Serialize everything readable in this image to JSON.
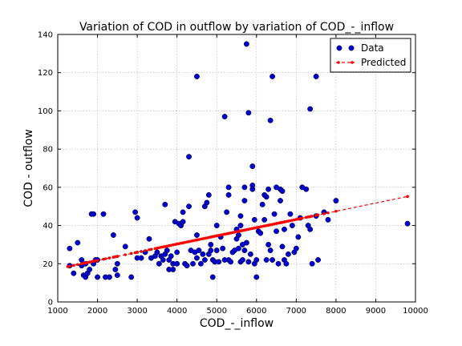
{
  "chart_data": {
    "type": "scatter",
    "title": "Variation of COD in outflow by variation of COD_-_inflow",
    "xlabel": "COD_-_inflow",
    "ylabel": "COD - outflow",
    "xlim": [
      1000,
      10000
    ],
    "ylim": [
      0,
      140
    ],
    "xticks": [
      "1000",
      "2000",
      "3000",
      "4000",
      "5000",
      "6000",
      "7000",
      "8000",
      "9000",
      "10000"
    ],
    "yticks": [
      "0",
      "20",
      "40",
      "60",
      "80",
      "100",
      "120",
      "140"
    ],
    "grid": true,
    "legend_position": "top-right",
    "colors": {
      "data": "#0000cc",
      "predicted": "#ff0000"
    },
    "series": [
      {
        "name": "Data",
        "style": "markers",
        "points": [
          [
            1300,
            19
          ],
          [
            1300,
            28
          ],
          [
            1400,
            15
          ],
          [
            1500,
            31
          ],
          [
            1600,
            22
          ],
          [
            1600,
            19
          ],
          [
            1650,
            14
          ],
          [
            1700,
            20
          ],
          [
            1700,
            13
          ],
          [
            1750,
            15
          ],
          [
            1800,
            17
          ],
          [
            1850,
            46
          ],
          [
            1900,
            46
          ],
          [
            1900,
            20
          ],
          [
            1950,
            22
          ],
          [
            2000,
            13
          ],
          [
            2000,
            22
          ],
          [
            2150,
            46
          ],
          [
            2200,
            13
          ],
          [
            2300,
            13
          ],
          [
            2400,
            35
          ],
          [
            2450,
            17
          ],
          [
            2500,
            14
          ],
          [
            2500,
            20
          ],
          [
            2700,
            29
          ],
          [
            2850,
            13
          ],
          [
            2950,
            47
          ],
          [
            3000,
            23
          ],
          [
            3000,
            44
          ],
          [
            3100,
            23
          ],
          [
            3200,
            26
          ],
          [
            3300,
            33
          ],
          [
            3350,
            23
          ],
          [
            3450,
            24
          ],
          [
            3500,
            26
          ],
          [
            3550,
            20
          ],
          [
            3600,
            24
          ],
          [
            3650,
            22
          ],
          [
            3700,
            25
          ],
          [
            3700,
            51
          ],
          [
            3750,
            27
          ],
          [
            3800,
            17
          ],
          [
            3800,
            22
          ],
          [
            3850,
            24
          ],
          [
            3900,
            17
          ],
          [
            3900,
            20
          ],
          [
            3950,
            42
          ],
          [
            4000,
            20
          ],
          [
            4000,
            26
          ],
          [
            4050,
            41
          ],
          [
            4100,
            40
          ],
          [
            4150,
            42
          ],
          [
            4150,
            47
          ],
          [
            4200,
            20
          ],
          [
            4250,
            19
          ],
          [
            4300,
            76
          ],
          [
            4300,
            50
          ],
          [
            4350,
            27
          ],
          [
            4400,
            20
          ],
          [
            4450,
            26
          ],
          [
            4500,
            118
          ],
          [
            4500,
            23
          ],
          [
            4500,
            35
          ],
          [
            4550,
            27
          ],
          [
            4600,
            20
          ],
          [
            4650,
            25
          ],
          [
            4700,
            50
          ],
          [
            4700,
            22
          ],
          [
            4750,
            52
          ],
          [
            4800,
            56
          ],
          [
            4800,
            25
          ],
          [
            4850,
            27
          ],
          [
            4850,
            30
          ],
          [
            4900,
            13
          ],
          [
            4900,
            22
          ],
          [
            4950,
            21
          ],
          [
            5000,
            40
          ],
          [
            5000,
            27
          ],
          [
            5050,
            21
          ],
          [
            5100,
            34
          ],
          [
            5150,
            28
          ],
          [
            5200,
            97
          ],
          [
            5200,
            22
          ],
          [
            5250,
            47
          ],
          [
            5300,
            60
          ],
          [
            5300,
            56
          ],
          [
            5300,
            22
          ],
          [
            5350,
            21
          ],
          [
            5400,
            26
          ],
          [
            5450,
            27
          ],
          [
            5500,
            33
          ],
          [
            5500,
            38
          ],
          [
            5550,
            35
          ],
          [
            5550,
            28
          ],
          [
            5600,
            40
          ],
          [
            5600,
            45
          ],
          [
            5600,
            21
          ],
          [
            5650,
            30
          ],
          [
            5650,
            22
          ],
          [
            5700,
            60
          ],
          [
            5700,
            53
          ],
          [
            5700,
            27
          ],
          [
            5750,
            135
          ],
          [
            5750,
            31
          ],
          [
            5800,
            99
          ],
          [
            5800,
            21
          ],
          [
            5850,
            25
          ],
          [
            5900,
            71
          ],
          [
            5900,
            61
          ],
          [
            5900,
            59
          ],
          [
            5950,
            43
          ],
          [
            5950,
            20
          ],
          [
            6000,
            13
          ],
          [
            6000,
            22
          ],
          [
            6050,
            37
          ],
          [
            6100,
            36
          ],
          [
            6150,
            51
          ],
          [
            6200,
            56
          ],
          [
            6200,
            43
          ],
          [
            6250,
            55
          ],
          [
            6250,
            22
          ],
          [
            6300,
            59
          ],
          [
            6300,
            30
          ],
          [
            6350,
            95
          ],
          [
            6350,
            27
          ],
          [
            6400,
            118
          ],
          [
            6400,
            22
          ],
          [
            6450,
            46
          ],
          [
            6500,
            60
          ],
          [
            6500,
            37
          ],
          [
            6550,
            20
          ],
          [
            6600,
            53
          ],
          [
            6600,
            59
          ],
          [
            6650,
            58
          ],
          [
            6650,
            29
          ],
          [
            6700,
            38
          ],
          [
            6700,
            22
          ],
          [
            6750,
            20
          ],
          [
            6800,
            25
          ],
          [
            6850,
            46
          ],
          [
            6900,
            40
          ],
          [
            6950,
            26
          ],
          [
            7000,
            28
          ],
          [
            7050,
            34
          ],
          [
            7100,
            44
          ],
          [
            7150,
            60
          ],
          [
            7250,
            59
          ],
          [
            7300,
            40
          ],
          [
            7350,
            38
          ],
          [
            7350,
            101
          ],
          [
            7400,
            20
          ],
          [
            7500,
            118
          ],
          [
            7500,
            45
          ],
          [
            7550,
            22
          ],
          [
            7700,
            47
          ],
          [
            7800,
            43
          ],
          [
            8000,
            53
          ],
          [
            9800,
            41
          ]
        ]
      },
      {
        "name": "Predicted",
        "style": "dashed-line-with-markers",
        "start": [
          1250,
          18.5
        ],
        "end": [
          9800,
          55.2
        ]
      }
    ]
  }
}
